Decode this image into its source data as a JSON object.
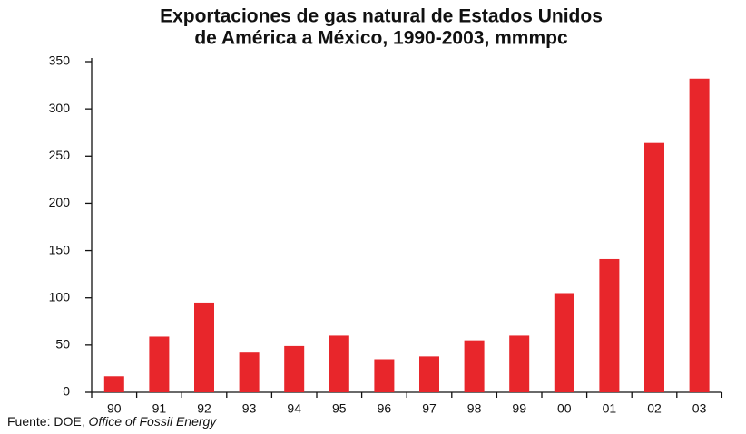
{
  "chart_data": {
    "type": "bar",
    "title": [
      "Exportaciones de gas natural de Estados Unidos",
      "de América a México, 1990-2003, mmmpc"
    ],
    "categories": [
      "90",
      "91",
      "92",
      "93",
      "94",
      "95",
      "96",
      "97",
      "98",
      "99",
      "00",
      "01",
      "02",
      "03"
    ],
    "values": [
      17,
      59,
      95,
      42,
      49,
      60,
      35,
      38,
      55,
      60,
      105,
      141,
      264,
      332
    ],
    "color": "#e8262b",
    "ylim": [
      0,
      350
    ],
    "yticks": [
      0,
      50,
      100,
      150,
      200,
      250,
      300,
      350
    ],
    "grid": false,
    "source": [
      "Fuente: DOE,",
      "Office of Fossil Energy"
    ]
  }
}
